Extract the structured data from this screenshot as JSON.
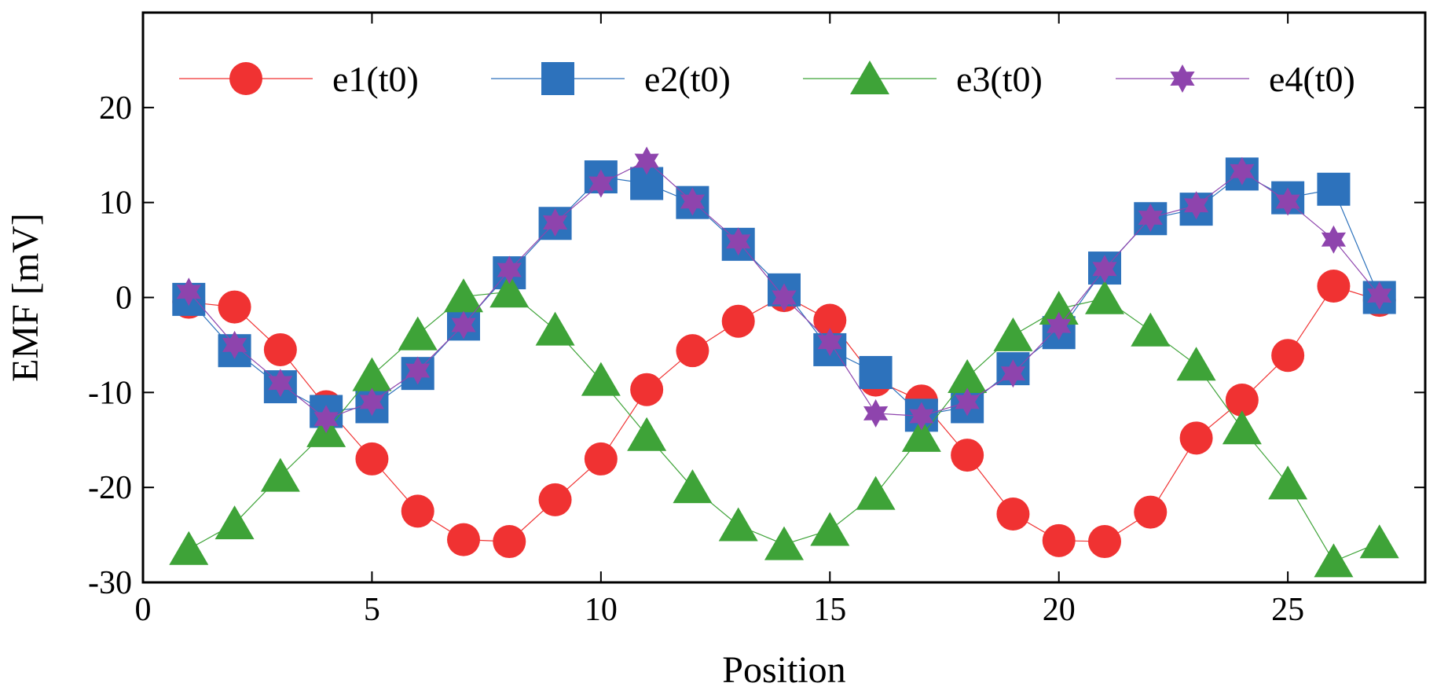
{
  "chart_data": {
    "type": "line",
    "title": "",
    "xlabel": "Position",
    "ylabel": "EMF [mV]",
    "xlim": [
      0,
      28
    ],
    "ylim": [
      -30,
      30
    ],
    "xticks": [
      0,
      5,
      10,
      15,
      20,
      25
    ],
    "yticks": [
      -30,
      -20,
      -10,
      0,
      10,
      20
    ],
    "grid": false,
    "legend_position": "top",
    "x": [
      1,
      2,
      3,
      4,
      5,
      6,
      7,
      8,
      9,
      10,
      11,
      12,
      13,
      14,
      15,
      16,
      17,
      18,
      19,
      20,
      21,
      22,
      23,
      24,
      25,
      26,
      27
    ],
    "series": [
      {
        "name": "e1(t0)",
        "color": "#f03232",
        "marker": "circle",
        "values": [
          -0.5,
          -1,
          -5.5,
          -11.5,
          -17,
          -22.5,
          -25.5,
          -25.7,
          -21.3,
          -17,
          -9.7,
          -5.6,
          -2.5,
          0.2,
          -2.4,
          -8.7,
          -10.9,
          -16.6,
          -22.8,
          -25.6,
          -25.7,
          -22.6,
          -14.8,
          -10.8,
          -6.1,
          1.2,
          -0.3
        ]
      },
      {
        "name": "e2(t0)",
        "color": "#2d72bc",
        "marker": "square",
        "values": [
          -0.2,
          -5.6,
          -9.4,
          -12,
          -11.5,
          -8,
          -2.8,
          2.6,
          7.8,
          12.7,
          12,
          10,
          5.6,
          0.8,
          -5.5,
          -7.9,
          -12.4,
          -11.5,
          -7.5,
          -3.7,
          3.1,
          8.3,
          9.3,
          13,
          10.5,
          11.4,
          0
        ]
      },
      {
        "name": "e3(t0)",
        "color": "#3ea338",
        "marker": "triangle",
        "values": [
          -26.5,
          -23.8,
          -18.8,
          -14.1,
          -8.2,
          -3.9,
          0.1,
          0.6,
          -3.4,
          -8.7,
          -14.5,
          -20,
          -24,
          -26,
          -24.5,
          -20.7,
          -14.6,
          -8.4,
          -4,
          -1.2,
          -0.1,
          -3.5,
          -7.1,
          -13.8,
          -19.6,
          -27.8,
          -25.8
        ]
      },
      {
        "name": "e4(t0)",
        "color": "#8e44ad",
        "marker": "star",
        "values": [
          0.6,
          -5,
          -9,
          -12.8,
          -11,
          -7.7,
          -2.9,
          2.9,
          7.9,
          12,
          14.4,
          10.1,
          5.9,
          0,
          -4.7,
          -12.2,
          -12.5,
          -11,
          -8,
          -3,
          3,
          8.4,
          9.7,
          13.3,
          10.1,
          6.1,
          0.2
        ]
      }
    ]
  }
}
